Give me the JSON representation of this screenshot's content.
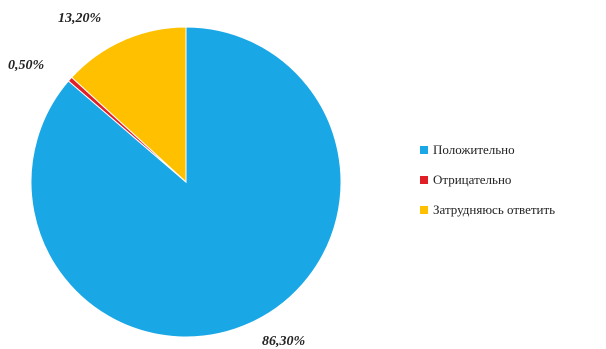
{
  "chart_data": {
    "type": "pie",
    "title": "",
    "legend_position": "right",
    "start": "top, clockwise, largest slice first",
    "categories": [
      "Положительно",
      "Отрицательно",
      "Затрудняюсь ответить"
    ],
    "values": [
      86.3,
      0.5,
      13.2
    ],
    "labels": [
      "86,30%",
      "0,50%",
      "13,20%"
    ],
    "colors": [
      "#1aa7e6",
      "#e01f26",
      "#ffc000"
    ]
  }
}
